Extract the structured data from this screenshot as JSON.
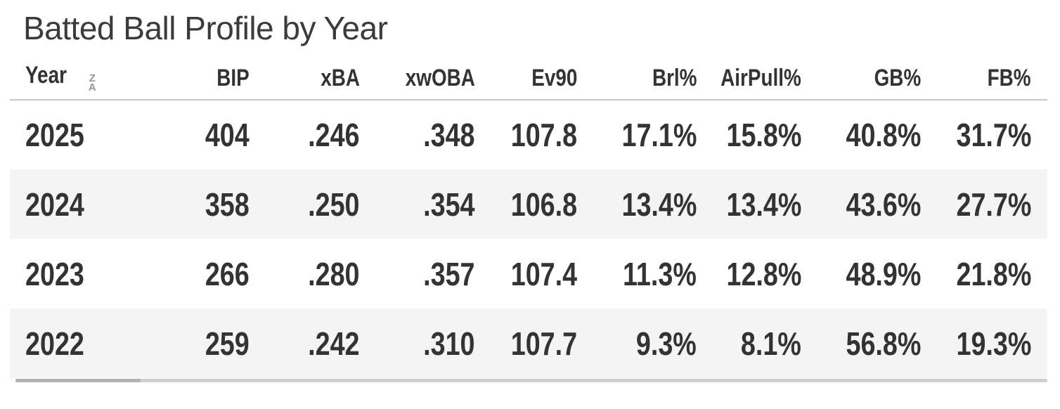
{
  "title": "Batted Ball Profile by Year",
  "sort_icon": {
    "top": "Z",
    "bottom": "A"
  },
  "table": {
    "columns": [
      {
        "key": "year",
        "label": "Year",
        "align": "left",
        "sorted": "desc"
      },
      {
        "key": "bip",
        "label": "BIP"
      },
      {
        "key": "xba",
        "label": "xBA"
      },
      {
        "key": "xwoba",
        "label": "xwOBA"
      },
      {
        "key": "ev90",
        "label": "Ev90"
      },
      {
        "key": "brl",
        "label": "Brl%"
      },
      {
        "key": "airpull",
        "label": "AirPull%"
      },
      {
        "key": "gb",
        "label": "GB%"
      },
      {
        "key": "fb",
        "label": "FB%"
      }
    ],
    "rows": [
      {
        "year": "2025",
        "bip": "404",
        "xba": ".246",
        "xwoba": ".348",
        "ev90": "107.8",
        "brl": "17.1%",
        "airpull": "15.8%",
        "gb": "40.8%",
        "fb": "31.7%"
      },
      {
        "year": "2024",
        "bip": "358",
        "xba": ".250",
        "xwoba": ".354",
        "ev90": "106.8",
        "brl": "13.4%",
        "airpull": "13.4%",
        "gb": "43.6%",
        "fb": "27.7%"
      },
      {
        "year": "2023",
        "bip": "266",
        "xba": ".280",
        "xwoba": ".357",
        "ev90": "107.4",
        "brl": "11.3%",
        "airpull": "12.8%",
        "gb": "48.9%",
        "fb": "21.8%"
      },
      {
        "year": "2022",
        "bip": "259",
        "xba": ".242",
        "xwoba": ".310",
        "ev90": "107.7",
        "brl": "9.3%",
        "airpull": "8.1%",
        "gb": "56.8%",
        "fb": "19.3%"
      }
    ]
  },
  "colors": {
    "text": "#333333",
    "title": "#3b3b3b",
    "row_alt_bg": "#f4f4f4",
    "header_border": "#c8c8c8",
    "sort_icon": "#949494",
    "scrollbar_track": "#cfcfcf",
    "scrollbar_thumb": "#b3b3b3"
  }
}
